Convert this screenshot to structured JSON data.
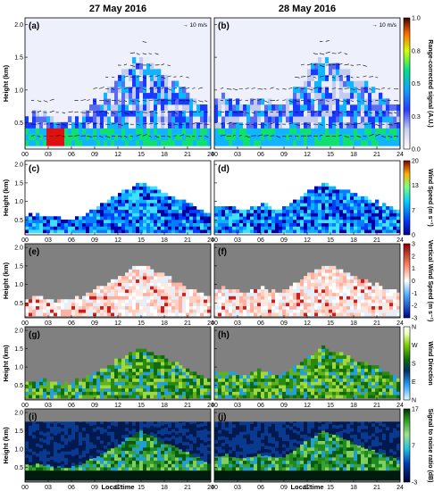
{
  "figure": {
    "day_titles": [
      "27 May 2016",
      "28 May 2016"
    ],
    "xlabel": "Local time",
    "ylabel": "Height (km)",
    "x_ticks": [
      "00",
      "03",
      "06",
      "09",
      "12",
      "15",
      "18",
      "21",
      "24"
    ],
    "y_ticks": [
      "0.5",
      "1.0",
      "1.5",
      "2.0"
    ],
    "wind_scale_label": "→ 10 m/s"
  },
  "chart_data": [
    {
      "type": "heatmap",
      "panels": [
        "(a)",
        "(b)"
      ],
      "colorbar_label": "Range-corrected signal (A.U.)",
      "colorbar_ticks": [
        "0.0",
        "0.3",
        "0.5",
        "0.8",
        "1.0"
      ],
      "colorbar_range": [
        0.0,
        1.0
      ],
      "colormap": "jet",
      "overlay": "wind vectors",
      "xlim": [
        0,
        24
      ],
      "ylim": [
        0.1,
        2.1
      ]
    },
    {
      "type": "heatmap",
      "panels": [
        "(c)",
        "(d)"
      ],
      "colorbar_label": "Wind Speed (m s⁻¹)",
      "colorbar_ticks": [
        "0",
        "7",
        "13",
        "20"
      ],
      "colorbar_range": [
        0,
        20
      ],
      "colormap": "jet",
      "xlim": [
        0,
        24
      ],
      "ylim": [
        0.1,
        2.1
      ]
    },
    {
      "type": "heatmap",
      "panels": [
        "(e)",
        "(f)"
      ],
      "colorbar_label": "Vertical Wind Speed (m s⁻¹)",
      "colorbar_ticks": [
        "3",
        "2",
        "1",
        "0",
        "-1",
        "-2",
        "-3"
      ],
      "colorbar_range": [
        -3,
        3
      ],
      "colormap": "blue-white-red",
      "xlim": [
        0,
        24
      ],
      "ylim": [
        0.1,
        2.1
      ]
    },
    {
      "type": "heatmap",
      "panels": [
        "(g)",
        "(h)"
      ],
      "colorbar_label": "Wind Direction",
      "colorbar_ticks": [
        "N",
        "W",
        "S",
        "E",
        "N"
      ],
      "colormap": "cyclic-green",
      "xlim": [
        0,
        24
      ],
      "ylim": [
        0.1,
        2.1
      ]
    },
    {
      "type": "heatmap",
      "panels": [
        "(i)",
        "(j)"
      ],
      "colorbar_label": "Signal to noise ratio (dB)",
      "colorbar_ticks": [
        "17",
        "7",
        "-3"
      ],
      "colorbar_range": [
        -3,
        17
      ],
      "colormap": "dark-green-blue",
      "xlim": [
        0,
        24
      ],
      "ylim": [
        0.1,
        2.1
      ]
    }
  ]
}
